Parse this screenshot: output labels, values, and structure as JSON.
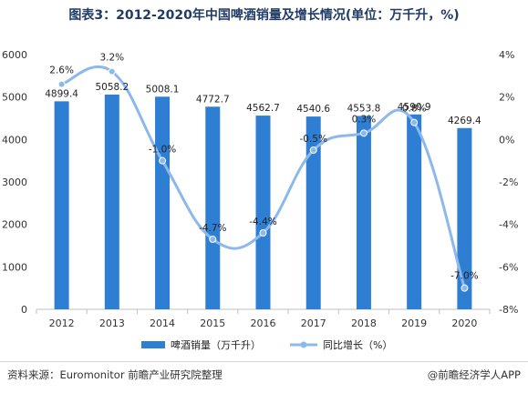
{
  "page": {
    "title": "图表3：2012-2020年中国啤酒销量及增长情况(单位：万千升，%)",
    "source": "资料来源：Euromonitor 前瞻产业研究院整理",
    "brand": "@前瞻经济学人APP"
  },
  "colors": {
    "bar": "#2e7fd3",
    "line": "#8db8ec",
    "title": "#1f3b66"
  },
  "chart_data": {
    "type": "bar",
    "categories": [
      "2012",
      "2013",
      "2014",
      "2015",
      "2016",
      "2017",
      "2018",
      "2019",
      "2020"
    ],
    "series": [
      {
        "name": "啤酒销量（万千升）",
        "type": "bar",
        "axis": "left",
        "values": [
          4899.4,
          5058.2,
          5008.1,
          4772.7,
          4562.7,
          4540.6,
          4553.8,
          4590.9,
          4269.4
        ],
        "labels": [
          "4899.4",
          "5058.2",
          "5008.1",
          "4772.7",
          "4562.7",
          "4540.6",
          "4553.8",
          "4590.9",
          "4269.4"
        ]
      },
      {
        "name": "同比增长（%）",
        "type": "line",
        "axis": "right",
        "values": [
          2.6,
          3.2,
          -1.0,
          -4.7,
          -4.4,
          -0.5,
          0.3,
          0.8,
          -7.0
        ],
        "labels": [
          "2.6%",
          "3.2%",
          "-1.0%",
          "-4.7%",
          "-4.4%",
          "-0.5%",
          "0.3%",
          "0.8%",
          "-7.0%"
        ]
      }
    ],
    "ylim_left": [
      0,
      6000
    ],
    "yticks_left": [
      "0",
      "1000",
      "2000",
      "3000",
      "4000",
      "5000",
      "6000"
    ],
    "ylim_right": [
      -8,
      4
    ],
    "yticks_right": [
      "-8%",
      "-6%",
      "-4%",
      "-2%",
      "0%",
      "2%",
      "4%"
    ],
    "grid": false,
    "legend_position": "bottom"
  }
}
